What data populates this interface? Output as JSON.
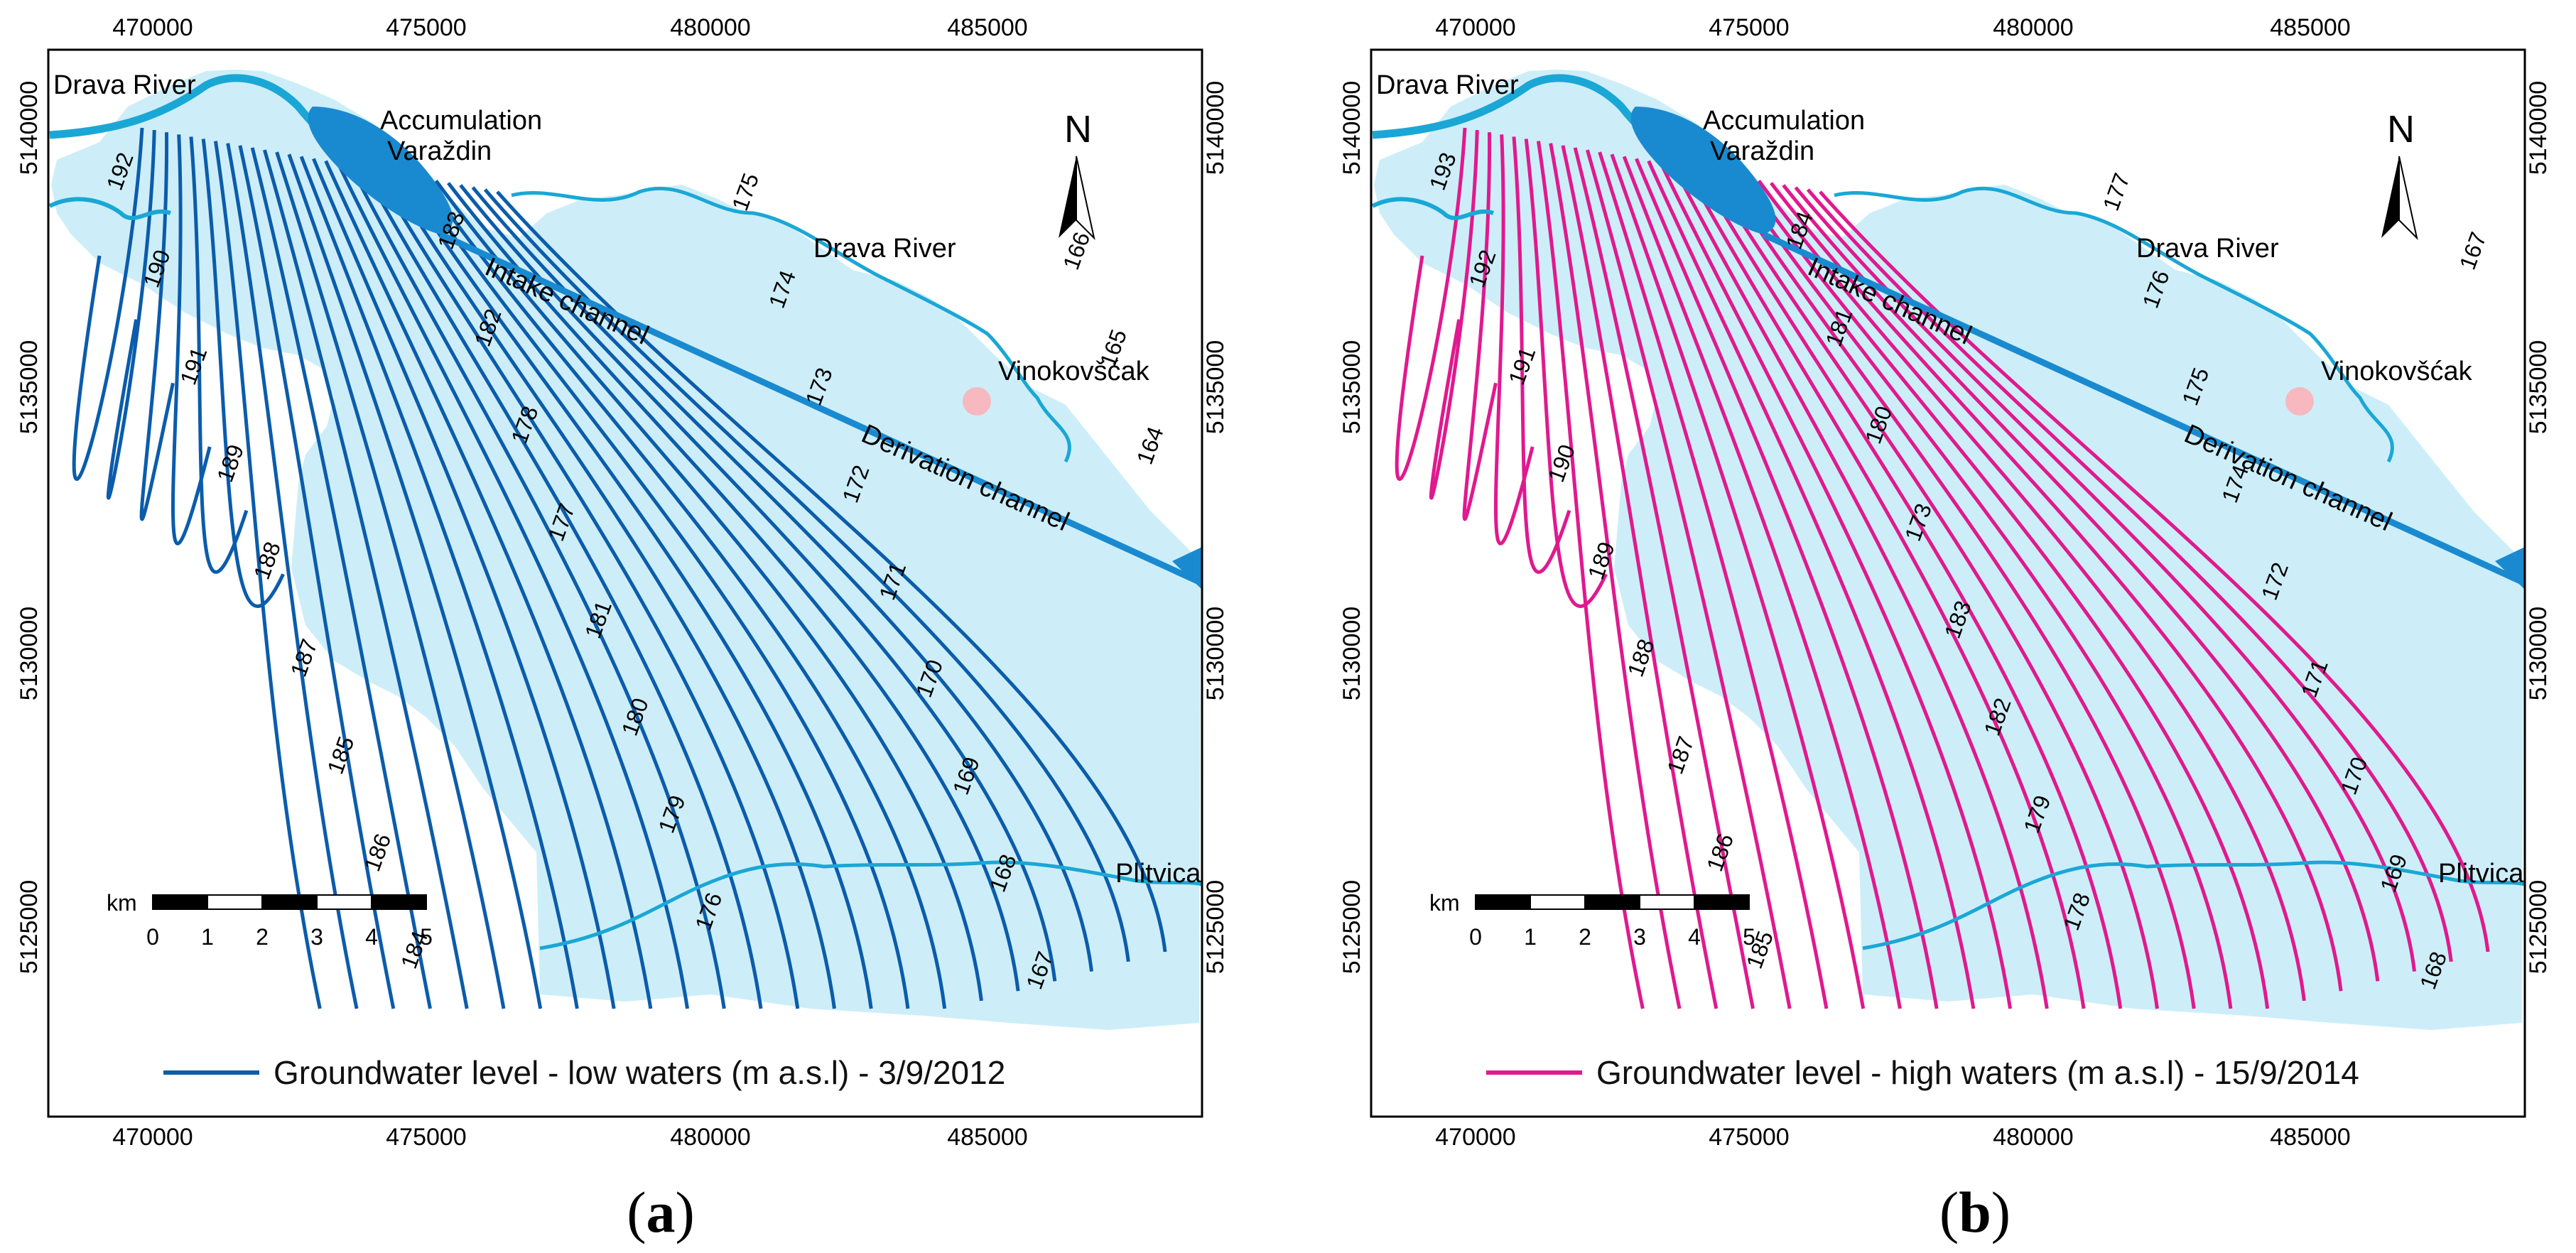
{
  "panels": [
    {
      "id": "a",
      "x_ticks": [
        "470000",
        "475000",
        "480000",
        "485000"
      ],
      "y_ticks": [
        "5140000",
        "5135000",
        "5130000",
        "5125000"
      ],
      "labels": {
        "river_nw": "Drava River",
        "accumulation_1": "Accumulation",
        "accumulation_2": "Varaždin",
        "river_ne": "Drava River",
        "intake": "Intake channel",
        "derivation": "Derivation channel",
        "village": "Vinokovšćak",
        "stream": "Plitvica"
      },
      "north": "N",
      "scale": {
        "unit": "km",
        "ticks": [
          "0",
          "1",
          "2",
          "3",
          "4",
          "5"
        ]
      },
      "legend": "Groundwater level - low waters (m a.s.l) - 3/9/2012",
      "line_color": "#0b5cab",
      "contour_labels": [
        "192",
        "190",
        "191",
        "189",
        "188",
        "187",
        "185",
        "186",
        "184",
        "183",
        "182",
        "178",
        "177",
        "181",
        "180",
        "179",
        "176",
        "175",
        "174",
        "173",
        "172",
        "171",
        "170",
        "169",
        "168",
        "167",
        "166",
        "165",
        "164"
      ],
      "caption": "a"
    },
    {
      "id": "b",
      "x_ticks": [
        "470000",
        "475000",
        "480000",
        "485000"
      ],
      "y_ticks": [
        "5140000",
        "5135000",
        "5130000",
        "5125000"
      ],
      "labels": {
        "river_nw": "Drava River",
        "accumulation_1": "Accumulation",
        "accumulation_2": "Varaždin",
        "river_ne": "Drava River",
        "intake": "Intake channel",
        "derivation": "Derivation channel",
        "village": "Vinokovšćak",
        "stream": "Plitvica"
      },
      "north": "N",
      "scale": {
        "unit": "km",
        "ticks": [
          "0",
          "1",
          "2",
          "3",
          "4",
          "5"
        ]
      },
      "legend": "Groundwater level - high waters (m a.s.l) - 15/9/2014",
      "line_color": "#e0198f",
      "contour_labels": [
        "193",
        "192",
        "191",
        "190",
        "189",
        "188",
        "187",
        "186",
        "185",
        "184",
        "181",
        "180",
        "173",
        "183",
        "182",
        "179",
        "178",
        "177",
        "176",
        "175",
        "174",
        "172",
        "171",
        "170",
        "169",
        "168",
        "167"
      ],
      "caption": "b"
    }
  ],
  "colors": {
    "land": "#cdeef8",
    "river": "#1aa7d6",
    "channel": "#1a8ad0",
    "village_dot": "#f7b8c0"
  }
}
